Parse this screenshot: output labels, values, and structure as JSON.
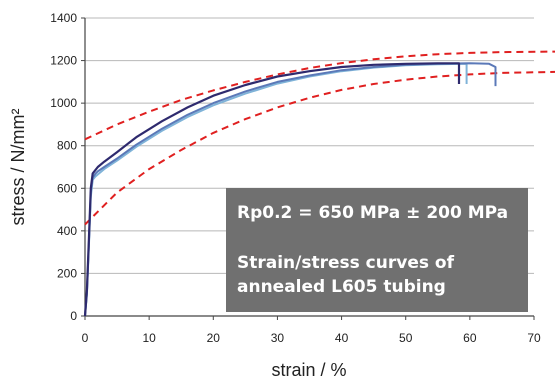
{
  "chart_data": {
    "type": "line",
    "xlabel": "strain / %",
    "ylabel": "stress / N/mm²",
    "xlim": [
      0,
      70
    ],
    "ylim": [
      0,
      1400
    ],
    "x_ticks": [
      0,
      10,
      20,
      30,
      40,
      50,
      60,
      70
    ],
    "y_ticks": [
      0,
      200,
      400,
      600,
      800,
      1000,
      1200,
      1400
    ],
    "grid": "horizontal",
    "annotation_lines": [
      "Rp0.2 = 650 MPa ± 200 MPa",
      "Strain/stress curves of",
      "annealed L605 tubing"
    ],
    "colors": {
      "dark_curve": "#2e2a6e",
      "mid_curve": "#5b79b8",
      "light_curve": "#7fb3d8",
      "envelope": "#e02020",
      "annotation_box": "#707070"
    },
    "series": [
      {
        "style": "dark-solid",
        "x": [
          0,
          0.3,
          0.6,
          0.9,
          1.2,
          1.6,
          2,
          3,
          5,
          8,
          12,
          16,
          20,
          25,
          30,
          35,
          40,
          45,
          50,
          55,
          58.3,
          58.3
        ],
        "y": [
          0,
          120,
          350,
          600,
          670,
          685,
          700,
          725,
          770,
          840,
          915,
          980,
          1035,
          1085,
          1125,
          1150,
          1170,
          1180,
          1185,
          1187,
          1187,
          1090
        ]
      },
      {
        "style": "mid-solid",
        "x": [
          0,
          0.3,
          0.6,
          0.9,
          1.2,
          1.6,
          2,
          3,
          5,
          8,
          12,
          16,
          20,
          25,
          30,
          35,
          40,
          45,
          50,
          55,
          60,
          63,
          64,
          64
        ],
        "y": [
          0,
          110,
          330,
          580,
          650,
          668,
          680,
          700,
          740,
          805,
          880,
          945,
          1000,
          1055,
          1100,
          1130,
          1155,
          1170,
          1180,
          1185,
          1187,
          1185,
          1170,
          1080
        ]
      },
      {
        "style": "light-solid",
        "x": [
          0,
          0.3,
          0.6,
          0.9,
          1.2,
          1.6,
          2,
          3,
          5,
          8,
          12,
          16,
          20,
          25,
          30,
          35,
          40,
          45,
          50,
          55,
          59.5,
          59.5
        ],
        "y": [
          0,
          100,
          320,
          560,
          640,
          655,
          665,
          690,
          730,
          795,
          870,
          935,
          990,
          1045,
          1092,
          1125,
          1150,
          1167,
          1178,
          1183,
          1185,
          1090
        ]
      },
      {
        "style": "red-dashed-upper",
        "x": [
          0,
          5,
          10,
          15,
          20,
          25,
          30,
          35,
          40,
          45,
          50,
          55,
          60,
          65,
          70
        ],
        "y": [
          830,
          900,
          960,
          1015,
          1060,
          1100,
          1135,
          1165,
          1188,
          1206,
          1220,
          1230,
          1236,
          1240,
          1242
        ]
      },
      {
        "style": "red-dashed-lower",
        "x": [
          0,
          1,
          3,
          5,
          10,
          15,
          20,
          25,
          30,
          35,
          40,
          45,
          50,
          55,
          60,
          65,
          70
        ],
        "y": [
          430,
          460,
          520,
          580,
          690,
          780,
          860,
          925,
          980,
          1025,
          1062,
          1090,
          1110,
          1125,
          1135,
          1142,
          1147
        ]
      }
    ]
  }
}
